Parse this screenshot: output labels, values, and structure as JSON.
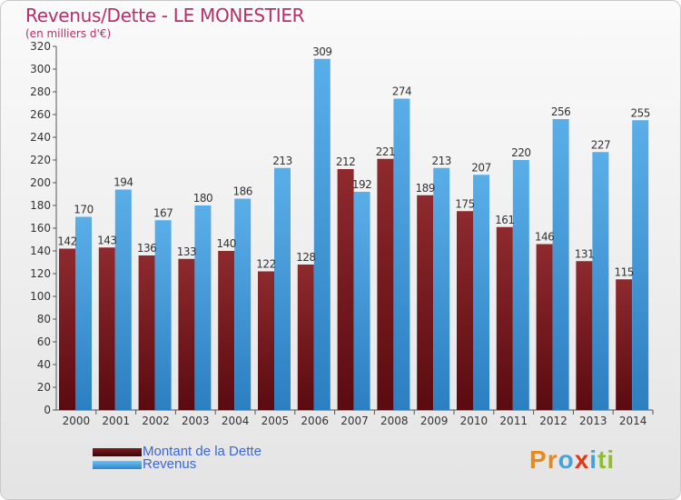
{
  "header": {
    "title": "Revenus/Dette - LE MONESTIER",
    "subtitle": "(en milliers d'€)"
  },
  "colors": {
    "title": "#b5306a",
    "debt": "#7a1e22",
    "revenue": "#3c9ae0",
    "legend_text": "#3b67d6"
  },
  "chart_data": {
    "type": "bar",
    "title": "Revenus/Dette - LE MONESTIER",
    "subtitle": "(en milliers d'€)",
    "xlabel": "",
    "ylabel": "",
    "ylim": [
      0,
      320
    ],
    "ytick_step": 20,
    "grid": false,
    "legend_position": "bottom-left",
    "categories": [
      "2000",
      "2001",
      "2002",
      "2003",
      "2004",
      "2005",
      "2006",
      "2007",
      "2008",
      "2009",
      "2010",
      "2011",
      "2012",
      "2013",
      "2014"
    ],
    "series": [
      {
        "name": "Montant de la Dette",
        "color": "#7a1e22",
        "values": [
          142,
          143,
          136,
          133,
          140,
          122,
          128,
          212,
          221,
          189,
          175,
          161,
          146,
          131,
          115
        ]
      },
      {
        "name": "Revenus",
        "color": "#3c9ae0",
        "values": [
          170,
          194,
          167,
          180,
          186,
          213,
          309,
          192,
          274,
          213,
          207,
          220,
          256,
          227,
          255
        ]
      }
    ]
  },
  "legend": {
    "debt_label": "Montant de la Dette",
    "revenue_label": "Revenus"
  },
  "logo": {
    "letters": [
      "P",
      "r",
      "o",
      "x",
      "i",
      "t",
      "i"
    ],
    "colors": [
      "#e88a1a",
      "#e88a1a",
      "#46a3d8",
      "#e03a1a",
      "#46a3d8",
      "#8cbf2a",
      "#8cbf2a"
    ]
  }
}
